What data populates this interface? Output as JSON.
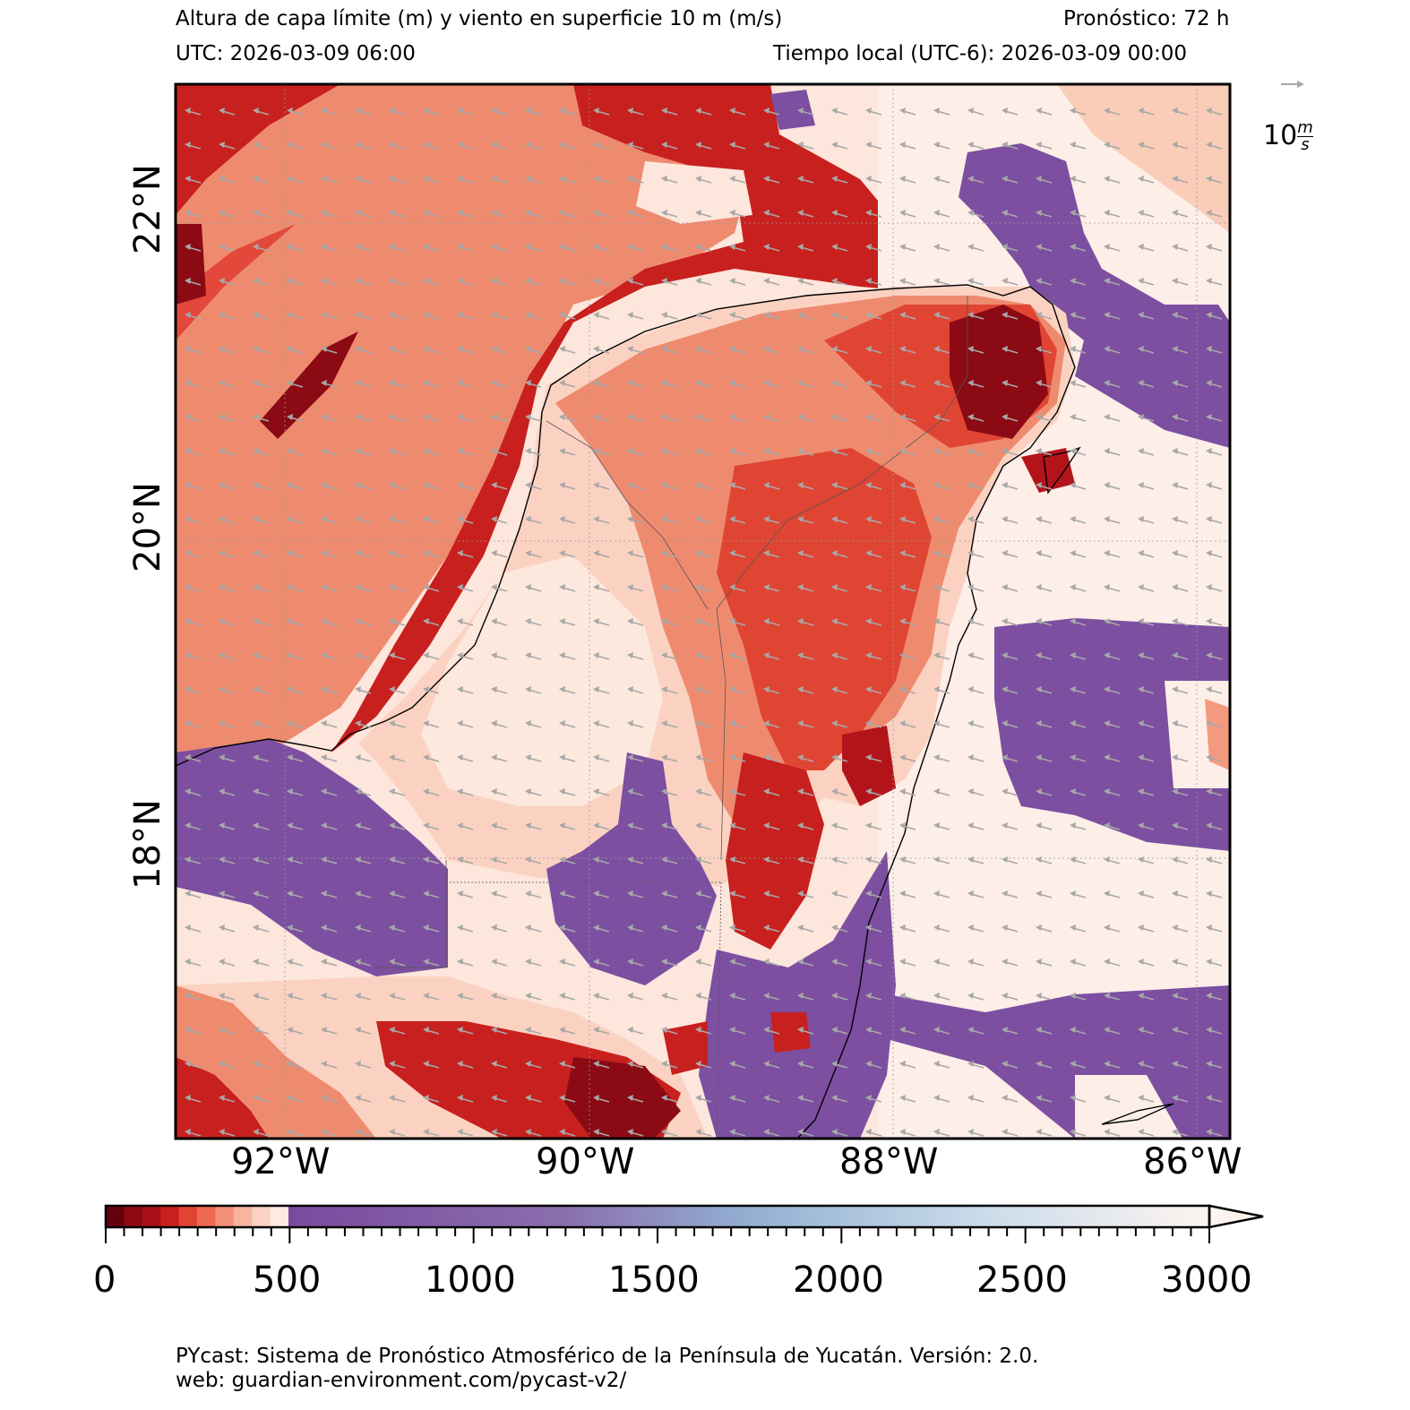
{
  "header": {
    "title": "Altura de capa límite (m) y viento en superficie 10 m (m/s)",
    "forecast": "Pronóstico: 72 h",
    "utc": "UTC:  2026-03-09 06:00",
    "local": "Tiempo local (UTC-6): 2026-03-09 00:00"
  },
  "map": {
    "lat_labels": [
      "22°N",
      "20°N",
      "18°N"
    ],
    "lon_labels": [
      "92°W",
      "90°W",
      "88°W",
      "86°W"
    ],
    "wind_ref_label": "10",
    "wind_ref_unit_num": "m",
    "wind_ref_unit_den": "s",
    "colors": {
      "deep_red": "#8b0a14",
      "red": "#c8201e",
      "salmon": "#ec8a70",
      "light": "#fde2d6",
      "purple": "#7c4fa0",
      "coast": "#000000",
      "wind_arrow": "#a8a8a8"
    }
  },
  "colorbar": {
    "ticks": [
      "0",
      "500",
      "1000",
      "1500",
      "2000",
      "2500",
      "3000"
    ],
    "extend": "max"
  },
  "footer": {
    "line1": "PYcast: Sistema de Pronóstico Atmosférico de la Península de Yucatán. Versión: 2.0.",
    "line2": "web: guardian-environment.com/pycast-v2/"
  }
}
